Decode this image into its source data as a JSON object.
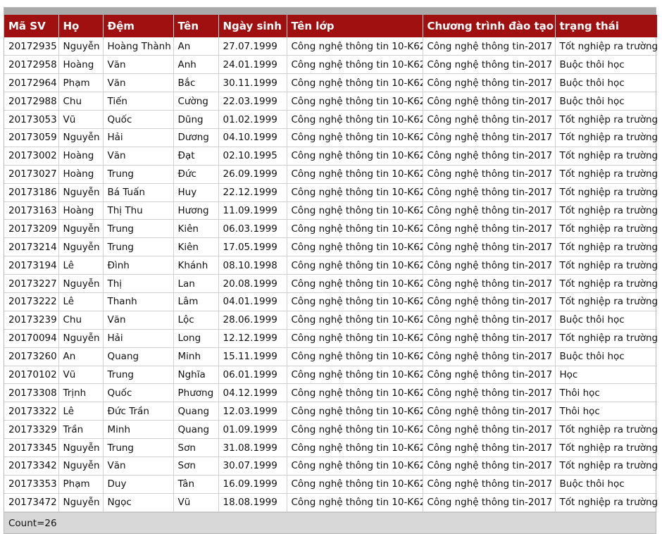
{
  "columns": [
    "Mã SV",
    "Họ",
    "Đệm",
    "Tên",
    "Ngày sinh",
    "Tên lớp",
    "Chương trình đào tạo",
    "trạng thái"
  ],
  "rows": [
    [
      "20172935",
      "Nguyễn",
      "Hoàng Thành",
      "An",
      "27.07.1999",
      "Công nghệ thông tin 10-K62",
      "Công nghệ thông tin-2017",
      "Tốt nghiệp ra trường"
    ],
    [
      "20172958",
      "Hoàng",
      "Văn",
      "Anh",
      "24.01.1999",
      "Công nghệ thông tin 10-K62",
      "Công nghệ thông tin-2017",
      "Buộc thôi học"
    ],
    [
      "20172964",
      "Phạm",
      "Văn",
      "Bắc",
      "30.11.1999",
      "Công nghệ thông tin 10-K62",
      "Công nghệ thông tin-2017",
      "Buộc thôi học"
    ],
    [
      "20172988",
      "Chu",
      "Tiến",
      "Cường",
      "22.03.1999",
      "Công nghệ thông tin 10-K62",
      "Công nghệ thông tin-2017",
      "Buộc thôi học"
    ],
    [
      "20173053",
      "Vũ",
      "Quốc",
      "Dũng",
      "01.02.1999",
      "Công nghệ thông tin 10-K62",
      "Công nghệ thông tin-2017",
      "Tốt nghiệp ra trường"
    ],
    [
      "20173059",
      "Nguyễn",
      "Hải",
      "Dương",
      "04.10.1999",
      "Công nghệ thông tin 10-K62",
      "Công nghệ thông tin-2017",
      "Tốt nghiệp ra trường"
    ],
    [
      "20173002",
      "Hoàng",
      "Văn",
      "Đạt",
      "02.10.1995",
      "Công nghệ thông tin 10-K62",
      "Công nghệ thông tin-2017",
      "Tốt nghiệp ra trường"
    ],
    [
      "20173027",
      "Hoàng",
      "Trung",
      "Đức",
      "26.09.1999",
      "Công nghệ thông tin 10-K62",
      "Công nghệ thông tin-2017",
      "Tốt nghiệp ra trường"
    ],
    [
      "20173186",
      "Nguyễn",
      "Bá Tuấn",
      "Huy",
      "22.12.1999",
      "Công nghệ thông tin 10-K62",
      "Công nghệ thông tin-2017",
      "Tốt nghiệp ra trường"
    ],
    [
      "20173163",
      "Hoàng",
      "Thị Thu",
      "Hương",
      "11.09.1999",
      "Công nghệ thông tin 10-K62",
      "Công nghệ thông tin-2017",
      "Tốt nghiệp ra trường"
    ],
    [
      "20173209",
      "Nguyễn",
      "Trung",
      "Kiên",
      "06.03.1999",
      "Công nghệ thông tin 10-K62",
      "Công nghệ thông tin-2017",
      "Tốt nghiệp ra trường"
    ],
    [
      "20173214",
      "Nguyễn",
      "Trung",
      "Kiên",
      "17.05.1999",
      "Công nghệ thông tin 10-K62",
      "Công nghệ thông tin-2017",
      "Tốt nghiệp ra trường"
    ],
    [
      "20173194",
      "Lê",
      "Đình",
      "Khánh",
      "08.10.1998",
      "Công nghệ thông tin 10-K62",
      "Công nghệ thông tin-2017",
      "Tốt nghiệp ra trường"
    ],
    [
      "20173227",
      "Nguyễn",
      "Thị",
      "Lan",
      "20.08.1999",
      "Công nghệ thông tin 10-K62",
      "Công nghệ thông tin-2017",
      "Tốt nghiệp ra trường"
    ],
    [
      "20173222",
      "Lê",
      "Thanh",
      "Lâm",
      "04.01.1999",
      "Công nghệ thông tin 10-K62",
      "Công nghệ thông tin-2017",
      "Tốt nghiệp ra trường"
    ],
    [
      "20173239",
      "Chu",
      "Văn",
      "Lộc",
      "28.06.1999",
      "Công nghệ thông tin 10-K62",
      "Công nghệ thông tin-2017",
      "Buộc thôi học"
    ],
    [
      "20170094",
      "Nguyễn",
      "Hải",
      "Long",
      "12.12.1999",
      "Công nghệ thông tin 10-K62",
      "Công nghệ thông tin-2017",
      "Tốt nghiệp ra trường"
    ],
    [
      "20173260",
      "An",
      "Quang",
      "Minh",
      "15.11.1999",
      "Công nghệ thông tin 10-K62",
      "Công nghệ thông tin-2017",
      "Buộc thôi học"
    ],
    [
      "20170102",
      "Vũ",
      "Trung",
      "Nghĩa",
      "06.01.1999",
      "Công nghệ thông tin 10-K62",
      "Công nghệ thông tin-2017",
      "Học"
    ],
    [
      "20173308",
      "Trịnh",
      "Quốc",
      "Phương",
      "04.12.1999",
      "Công nghệ thông tin 10-K62",
      "Công nghệ thông tin-2017",
      "Thôi học"
    ],
    [
      "20173322",
      "Lê",
      "Đức Trần",
      "Quang",
      "12.03.1999",
      "Công nghệ thông tin 10-K62",
      "Công nghệ thông tin-2017",
      "Thôi học"
    ],
    [
      "20173329",
      "Trần",
      "Minh",
      "Quang",
      "01.09.1999",
      "Công nghệ thông tin 10-K62",
      "Công nghệ thông tin-2017",
      "Tốt nghiệp ra trường"
    ],
    [
      "20173345",
      "Nguyễn",
      "Trung",
      "Sơn",
      "31.08.1999",
      "Công nghệ thông tin 10-K62",
      "Công nghệ thông tin-2017",
      "Tốt nghiệp ra trường"
    ],
    [
      "20173342",
      "Nguyễn",
      "Văn",
      "Sơn",
      "30.07.1999",
      "Công nghệ thông tin 10-K62",
      "Công nghệ thông tin-2017",
      "Tốt nghiệp ra trường"
    ],
    [
      "20173353",
      "Phạm",
      "Duy",
      "Tân",
      "16.09.1999",
      "Công nghệ thông tin 10-K62",
      "Công nghệ thông tin-2017",
      "Buộc thôi học"
    ],
    [
      "20173472",
      "Nguyễn",
      "Ngọc",
      "Vũ",
      "18.08.1999",
      "Công nghệ thông tin 10-K62",
      "Công nghệ thông tin-2017",
      "Tốt nghiệp ra trường"
    ]
  ],
  "footer": {
    "count_text": "Count=26"
  },
  "colors": {
    "header_bg": "#a01010",
    "header_text": "#ffffff",
    "footer_bg": "#d8d8d8",
    "topbar": "#a9a9a9"
  }
}
